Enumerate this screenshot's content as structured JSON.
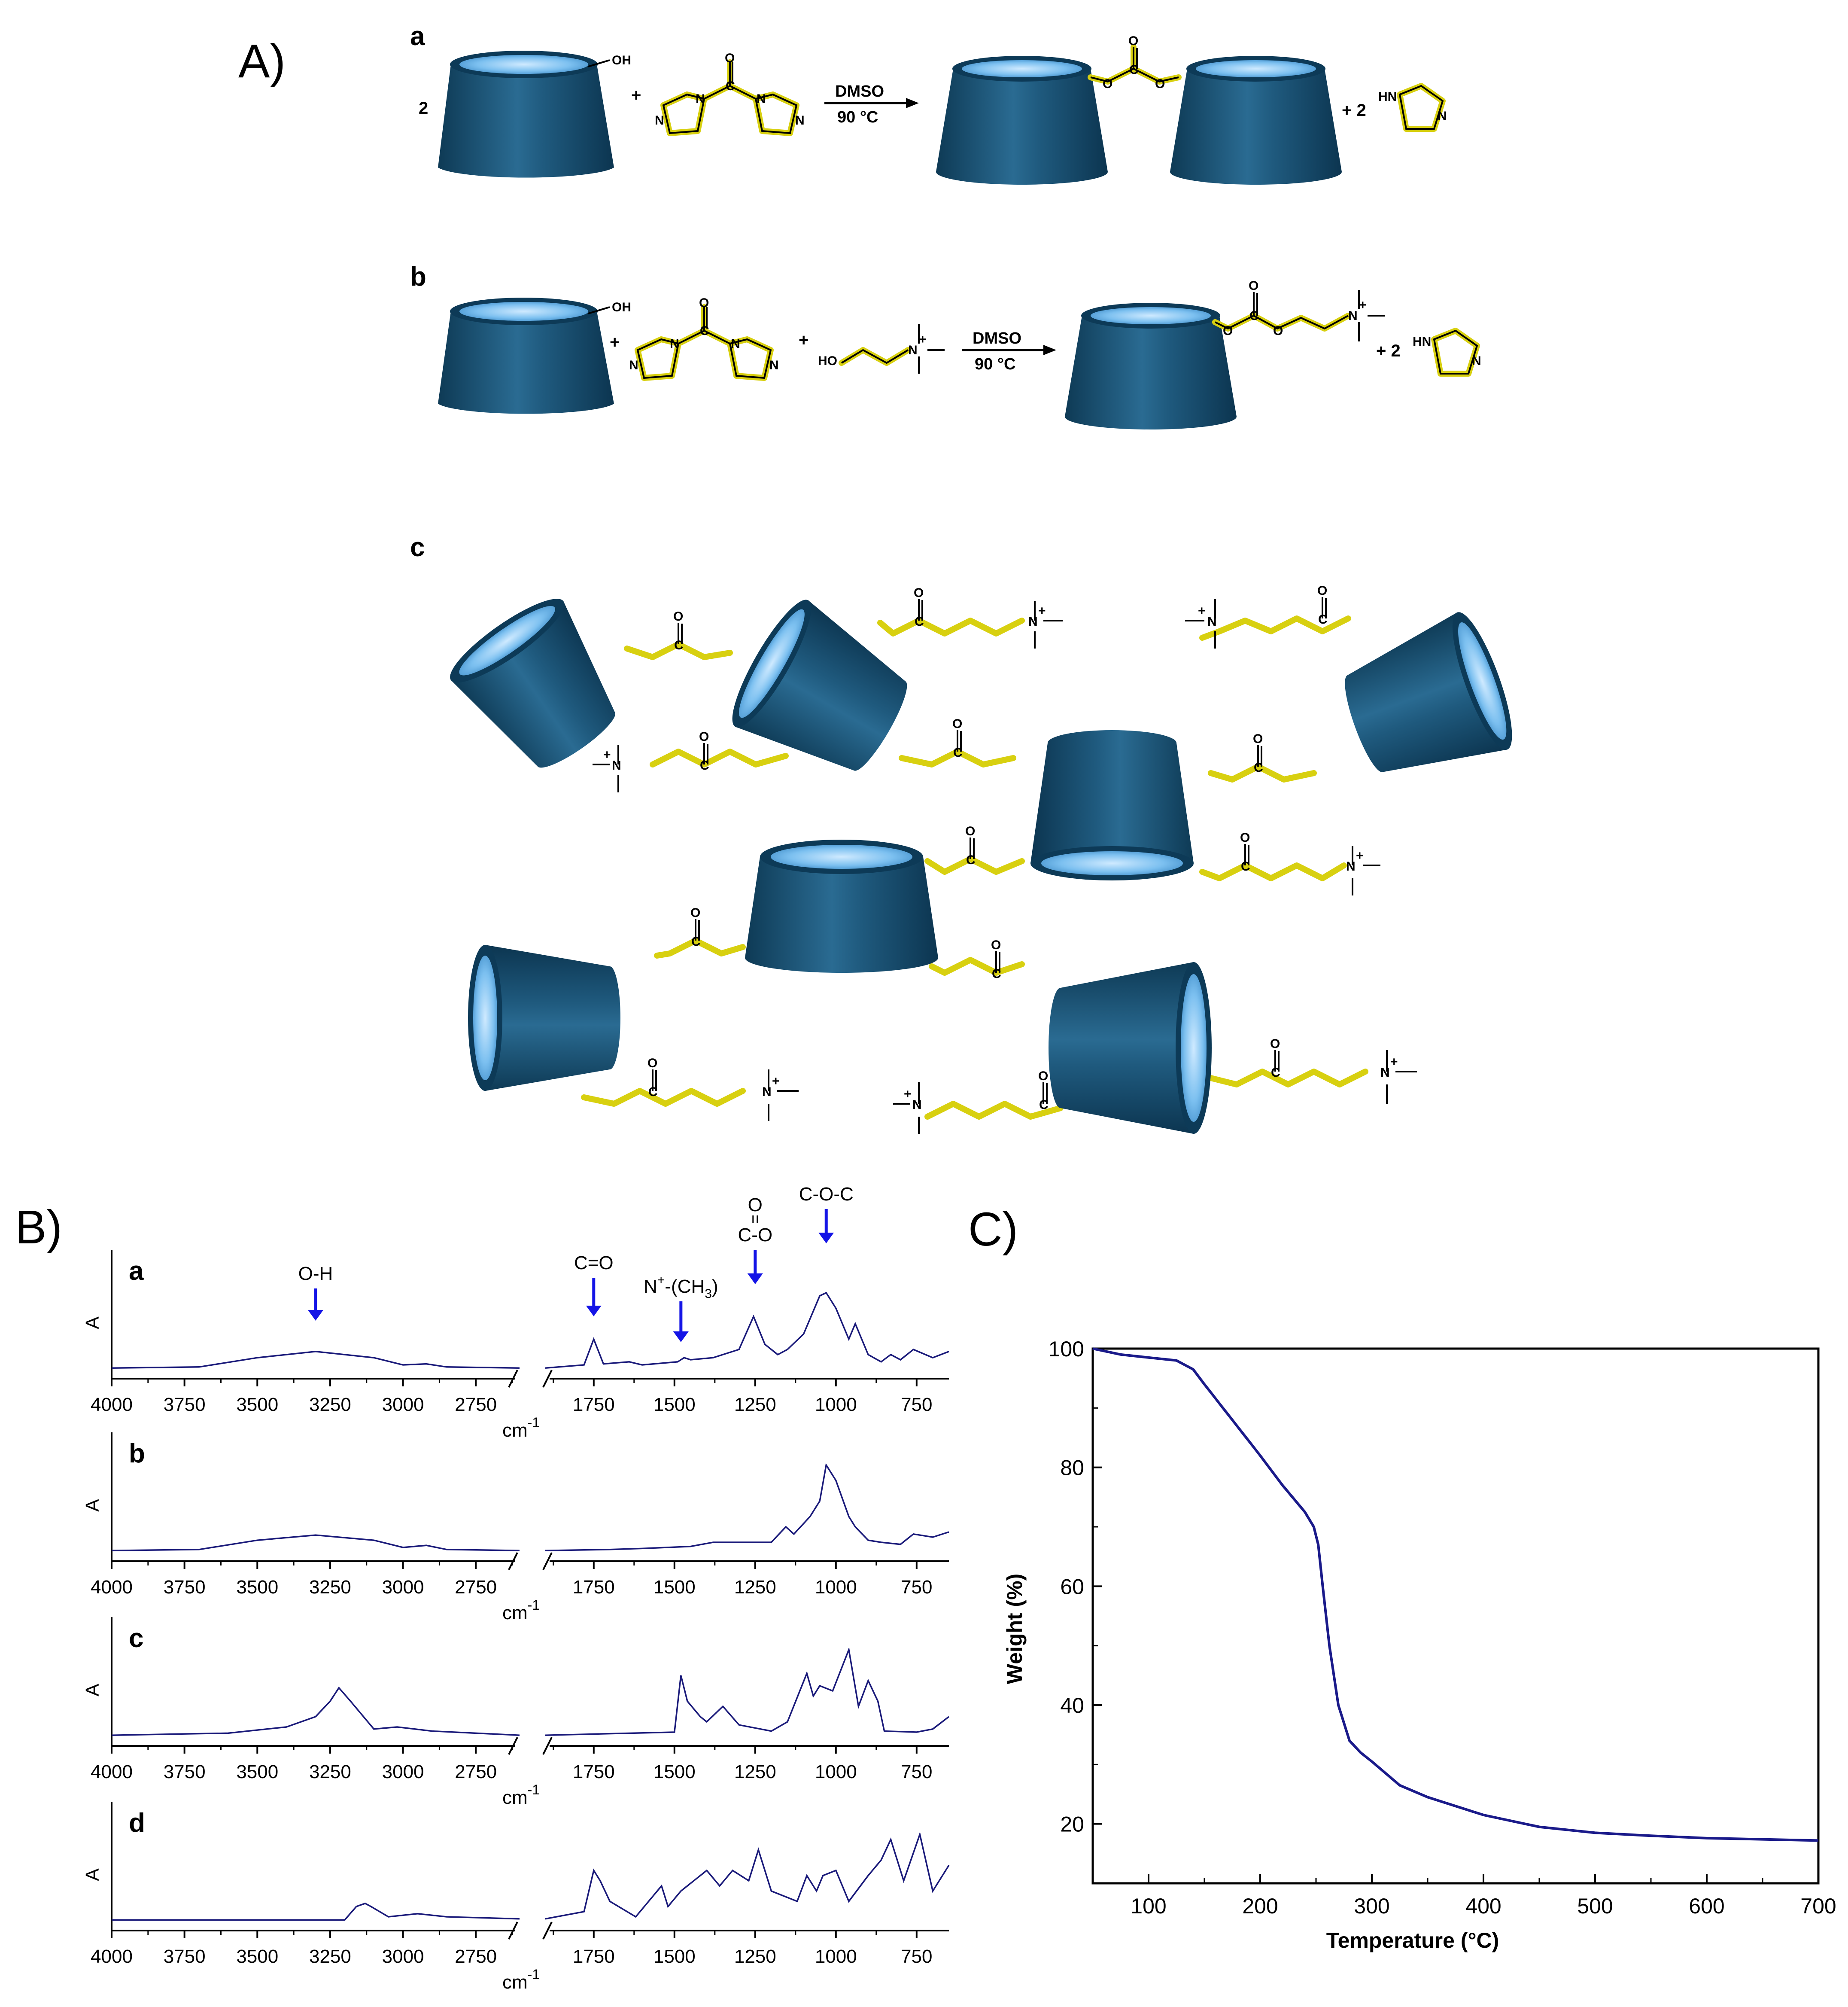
{
  "panels": {
    "A": "A)",
    "B": "B)",
    "C": "C)"
  },
  "scheme": {
    "sub_a": "a",
    "sub_b": "b",
    "sub_c": "c",
    "coef_2": "2",
    "plus": "+",
    "oh": "OH",
    "o": "O",
    "c": "C",
    "n": "N",
    "hn": "HN",
    "ho": "HO",
    "nplus": "N",
    "plus_charge": "+",
    "solvent": "DMSO",
    "temperature": "90 °C",
    "plus_2": "+  2"
  },
  "ir": {
    "y_label": "A",
    "x_unit": "cm",
    "x_unit_exp": "-1",
    "x_ticks": [
      "4000",
      "3750",
      "3500",
      "3250",
      "3000",
      "2750",
      "1750",
      "1500",
      "1250",
      "1000",
      "750"
    ],
    "subpanels": [
      "a",
      "b",
      "c",
      "d"
    ],
    "annotations": {
      "oh": "O-H",
      "co": "C=O",
      "nme3_base": "N",
      "nme3_sup": "+",
      "nme3_rest": "-(CH",
      "nme3_sub": "3",
      "nme3_close": ")",
      "carb_o": "O",
      "carb_co": "C-O",
      "coc": "C-O-C"
    },
    "arrow_color": "#1414e6",
    "line_color": "#1a1a7a"
  },
  "chart_data": {
    "type": "line",
    "title": "",
    "xlabel": "Temperature (°C)",
    "ylabel": "Weight (%)",
    "xlim": [
      50,
      700
    ],
    "ylim": [
      10,
      100
    ],
    "x_ticks": [
      100,
      200,
      300,
      400,
      500,
      600,
      700
    ],
    "y_ticks": [
      20,
      40,
      60,
      80,
      100
    ],
    "grid": false,
    "line_color": "#1a1a8a",
    "series": [
      {
        "x": [
          50,
          75,
          100,
          125,
          140,
          150,
          175,
          200,
          220,
          240,
          248,
          252,
          256,
          262,
          270,
          280,
          290,
          300,
          325,
          350,
          400,
          450,
          500,
          550,
          600,
          650,
          700
        ],
        "values": [
          100,
          99.0,
          98.5,
          98.0,
          96.5,
          94,
          88,
          82,
          77,
          72.5,
          70,
          67,
          60,
          50,
          40,
          34,
          32,
          30.5,
          26.5,
          24.5,
          21.5,
          19.5,
          18.5,
          18.0,
          17.6,
          17.4,
          17.2
        ]
      }
    ]
  }
}
